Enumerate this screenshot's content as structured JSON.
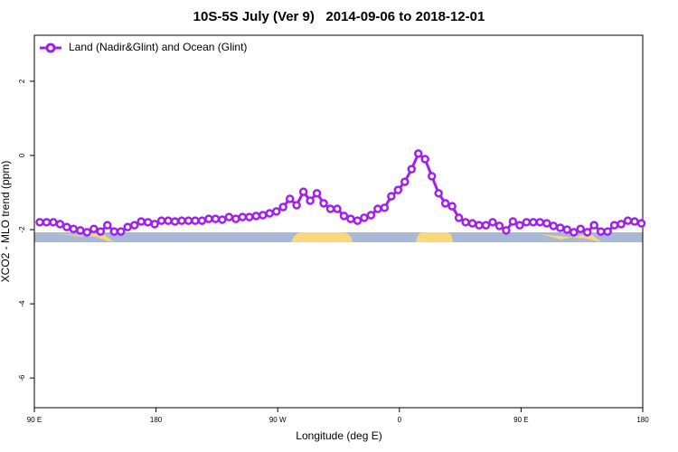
{
  "chart_data": {
    "type": "line",
    "title": "10S-5S July (Ver 9)   2014-09-06 to 2018-12-01",
    "x_label": "Longitude (deg E)",
    "y_label": "XCO2 - MLO trend (ppm)",
    "xlim": [
      90,
      540
    ],
    "ylim": [
      -6.8,
      3.24
    ],
    "xticks": [
      {
        "value": 90,
        "label": "90 E"
      },
      180,
      {
        "value": 270,
        "label": "90 W"
      },
      {
        "value": 360,
        "label": "0"
      },
      {
        "value": 450,
        "label": "90 E"
      },
      {
        "value": 540,
        "label": "180"
      }
    ],
    "yticks": [
      2,
      0,
      -2,
      -4,
      -6
    ],
    "legend": "top-left",
    "x": [
      94,
      99,
      104,
      109,
      114,
      119,
      124,
      129,
      134,
      139,
      144,
      149,
      154,
      159,
      164,
      169,
      174,
      179,
      184,
      189,
      194,
      199,
      204,
      209,
      214,
      219,
      224,
      229,
      234,
      239,
      244,
      249,
      254,
      259,
      264,
      269,
      274,
      279,
      284,
      289,
      294,
      299,
      304,
      309,
      314,
      319,
      324,
      329,
      334,
      339,
      344,
      349,
      354,
      359,
      364,
      369,
      374,
      379,
      384,
      389,
      394,
      399,
      404,
      409,
      414,
      419,
      424,
      429,
      434,
      439,
      444,
      449,
      454,
      459,
      464,
      469,
      474,
      479,
      484,
      489,
      494,
      499,
      504,
      509,
      514,
      519,
      524,
      529,
      534,
      539
    ],
    "series": [
      {
        "name": "Land (Nadir&Glint) and Ocean (Glint)",
        "color": "#a020f0",
        "values": [
          -1.8,
          -1.8,
          -1.8,
          -1.85,
          -1.93,
          -1.98,
          -2.02,
          -2.07,
          -1.98,
          -2.05,
          -1.88,
          -2.05,
          -2.05,
          -1.93,
          -1.88,
          -1.78,
          -1.8,
          -1.85,
          -1.76,
          -1.76,
          -1.78,
          -1.76,
          -1.76,
          -1.76,
          -1.76,
          -1.71,
          -1.71,
          -1.73,
          -1.66,
          -1.71,
          -1.66,
          -1.66,
          -1.63,
          -1.61,
          -1.56,
          -1.51,
          -1.39,
          -1.17,
          -1.34,
          -0.98,
          -1.22,
          -1.02,
          -1.29,
          -1.44,
          -1.44,
          -1.63,
          -1.71,
          -1.76,
          -1.68,
          -1.61,
          -1.44,
          -1.41,
          -1.1,
          -0.93,
          -0.71,
          -0.37,
          0.05,
          -0.1,
          -0.56,
          -1.02,
          -1.29,
          -1.37,
          -1.68,
          -1.8,
          -1.83,
          -1.88,
          -1.88,
          -1.8,
          -1.9,
          -2.02,
          -1.78,
          -1.88,
          -1.8,
          -1.8,
          -1.8,
          -1.83,
          -1.9,
          -1.95,
          -2.0,
          -2.07,
          -1.98,
          -2.07,
          -1.88,
          -2.05,
          -2.05,
          -1.88,
          -1.85,
          -1.76,
          -1.78,
          -1.83
        ]
      }
    ]
  }
}
